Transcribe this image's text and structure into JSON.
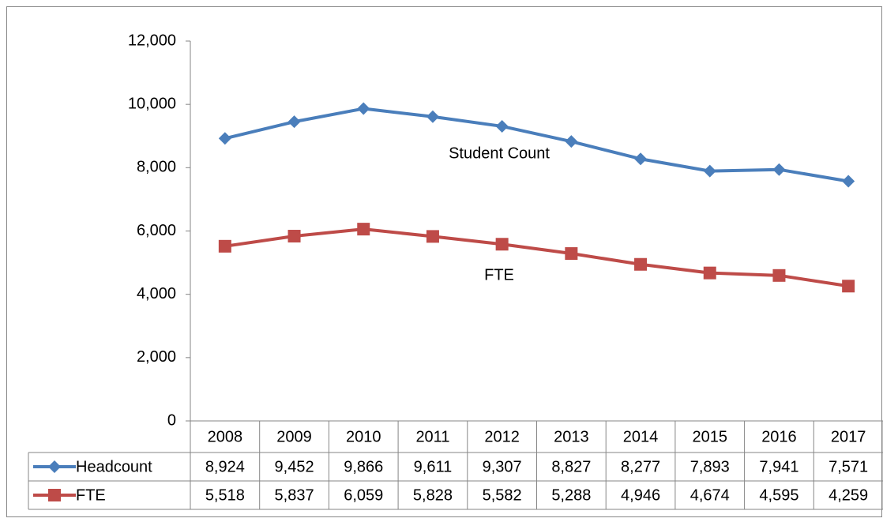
{
  "chart_data": {
    "type": "line",
    "categories": [
      "2008",
      "2009",
      "2010",
      "2011",
      "2012",
      "2013",
      "2014",
      "2015",
      "2016",
      "2017"
    ],
    "series": [
      {
        "name": "Headcount",
        "color": "#4a7ebb",
        "marker": "diamond",
        "values": [
          8924,
          9452,
          9866,
          9611,
          9307,
          8827,
          8277,
          7893,
          7941,
          7571
        ],
        "value_labels": [
          "8,924",
          "9,452",
          "9,866",
          "9,611",
          "9,307",
          "8,827",
          "8,277",
          "7,893",
          "7,941",
          "7,571"
        ]
      },
      {
        "name": "FTE",
        "color": "#be4b48",
        "marker": "square",
        "values": [
          5518,
          5837,
          6059,
          5828,
          5582,
          5288,
          4946,
          4674,
          4595,
          4259
        ],
        "value_labels": [
          "5,518",
          "5,837",
          "6,059",
          "5,828",
          "5,582",
          "5,288",
          "4,946",
          "4,674",
          "4,595",
          "4,259"
        ]
      }
    ],
    "annotations": [
      "Student Count",
      "FTE"
    ],
    "ylim": [
      0,
      12000
    ],
    "yticks": [
      0,
      {
        "value": 2000,
        "label": "2,000"
      },
      {
        "value": 4000,
        "label": "4,000"
      },
      {
        "value": 6000,
        "label": "6,000"
      },
      {
        "value": 8000,
        "label": "8,000"
      },
      {
        "value": 10000,
        "label": "10,000"
      },
      {
        "value": 12000,
        "label": "12,000"
      }
    ],
    "grid": false,
    "legend": "table"
  }
}
